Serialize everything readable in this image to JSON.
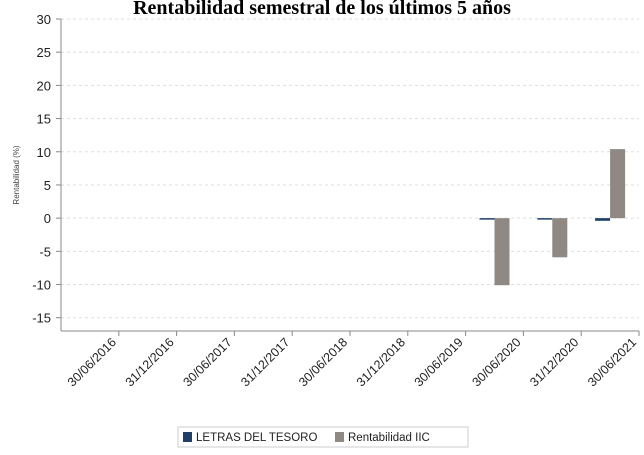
{
  "chart_data": {
    "type": "bar",
    "title": "Rentabilidad semestral de los últimos 5 años",
    "ylabel": "Rentabilidad (%)",
    "xlabel": "",
    "ylim": [
      -17,
      30
    ],
    "yticks": [
      30,
      25,
      20,
      15,
      10,
      5,
      0,
      -5,
      -10,
      -15
    ],
    "grid": true,
    "legend_position": "bottom",
    "categories": [
      "30/06/2016",
      "31/12/2016",
      "30/06/2017",
      "31/12/2017",
      "30/06/2018",
      "31/12/2018",
      "30/06/2019",
      "30/06/2020",
      "31/12/2020",
      "30/06/2021"
    ],
    "series": [
      {
        "name": "LETRAS DEL TESORO",
        "color": "#1f3f66",
        "values": [
          null,
          null,
          null,
          null,
          null,
          null,
          null,
          -0.1,
          -0.1,
          -0.4
        ]
      },
      {
        "name": "Rentabilidad IIC",
        "color": "#8f8883",
        "values": [
          null,
          null,
          null,
          null,
          null,
          null,
          null,
          -10.1,
          -5.9,
          10.4
        ]
      }
    ]
  }
}
